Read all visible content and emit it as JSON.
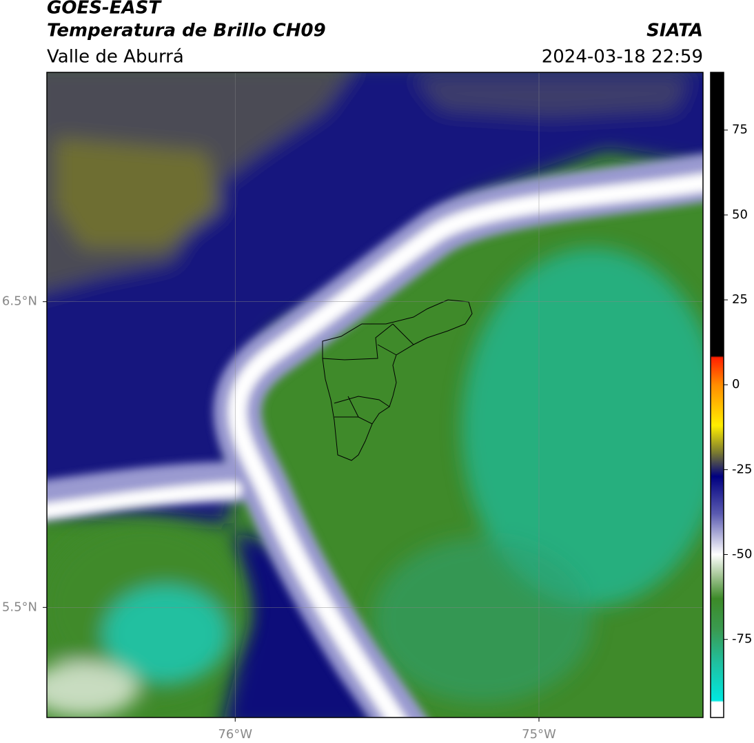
{
  "header": {
    "title": "GOES-EAST",
    "subtitle": "Temperatura de Brillo CH09",
    "region": "Valle de Aburrá",
    "source": "SIATA",
    "datetime": "2024-03-18 22:59"
  },
  "chart_data": {
    "type": "map",
    "xlim": [
      -76.62,
      -74.46
    ],
    "ylim": [
      5.14,
      7.25
    ],
    "xticks": [
      {
        "value": -76,
        "label": "76°W"
      },
      {
        "value": -75,
        "label": "75°W"
      }
    ],
    "yticks": [
      {
        "value": 6.5,
        "label": "6.5°N"
      },
      {
        "value": 5.5,
        "label": "5.5°N"
      }
    ],
    "grid": true,
    "colorbar": {
      "lim": [
        -98,
        92
      ],
      "ticks": [
        75,
        50,
        25,
        0,
        -25,
        -50,
        -75
      ],
      "stops": [
        {
          "value": 92,
          "color": "#000000"
        },
        {
          "value": 8.5,
          "color": "#000000"
        },
        {
          "value": 8,
          "color": "#ff2000"
        },
        {
          "value": 0,
          "color": "#ff8c00"
        },
        {
          "value": -12,
          "color": "#ffee00"
        },
        {
          "value": -20,
          "color": "#7a7a30"
        },
        {
          "value": -27,
          "color": "#000080"
        },
        {
          "value": -38,
          "color": "#5a5ab0"
        },
        {
          "value": -50,
          "color": "#ffffff"
        },
        {
          "value": -56,
          "color": "#a8c89a"
        },
        {
          "value": -63,
          "color": "#3c8a28"
        },
        {
          "value": -72,
          "color": "#3a9a50"
        },
        {
          "value": -82,
          "color": "#20c0a0"
        },
        {
          "value": -93,
          "color": "#00e8e0"
        },
        {
          "value": -93.5,
          "color": "#ffffff"
        },
        {
          "value": -98,
          "color": "#ffffff"
        }
      ]
    }
  }
}
